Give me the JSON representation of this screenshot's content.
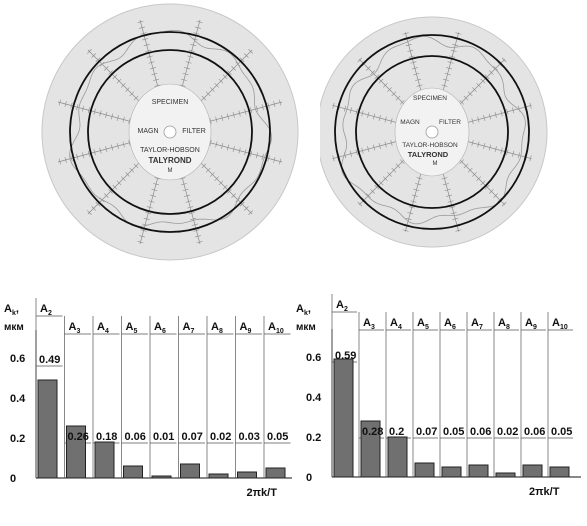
{
  "discs": [
    {
      "label_specimen": "SPECIMEN",
      "label_magn": "MAGN",
      "label_filter": "FILTER",
      "label_brand": "TAYLOR-HOBSON",
      "label_model": "TALYROND",
      "label_mark": "M"
    },
    {
      "label_specimen": "SPECIMEN",
      "label_magn": "MAGN",
      "label_filter": "FILTER",
      "label_brand": "TAYLOR-HOBSON",
      "label_model": "TALYROND",
      "label_mark": "M"
    }
  ],
  "chart_data": [
    {
      "type": "bar",
      "ylabel": "A_k, мкм",
      "xlabel": "2πk/T",
      "categories": [
        "A2",
        "A3",
        "A4",
        "A5",
        "A6",
        "A7",
        "A8",
        "A9",
        "A10"
      ],
      "values": [
        0.49,
        0.26,
        0.18,
        0.06,
        0.01,
        0.07,
        0.02,
        0.03,
        0.05
      ],
      "value_labels": [
        "0.49",
        "0.26",
        "0.18",
        "0.06",
        "0.01",
        "0.07",
        "0.02",
        "0.03",
        "0.05"
      ],
      "yticks": [
        "0",
        "0.2",
        "0.4",
        "0.6"
      ],
      "ylim": [
        0,
        0.7
      ],
      "bar_color": "#707070"
    },
    {
      "type": "bar",
      "ylabel": "A_k, мкм",
      "xlabel": "2πk/T",
      "categories": [
        "A2",
        "A3",
        "A4",
        "A5",
        "A6",
        "A7",
        "A8",
        "A9",
        "A10"
      ],
      "values": [
        0.59,
        0.28,
        0.2,
        0.07,
        0.05,
        0.06,
        0.02,
        0.06,
        0.05
      ],
      "value_labels": [
        "0.59",
        "0.28",
        "0.2",
        "0.07",
        "0.05",
        "0.06",
        "0.02",
        "0.06",
        "0.05"
      ],
      "yticks": [
        "0",
        "0.2",
        "0.4",
        "0.6"
      ],
      "ylim": [
        0,
        0.7
      ],
      "bar_color": "#707070"
    }
  ]
}
